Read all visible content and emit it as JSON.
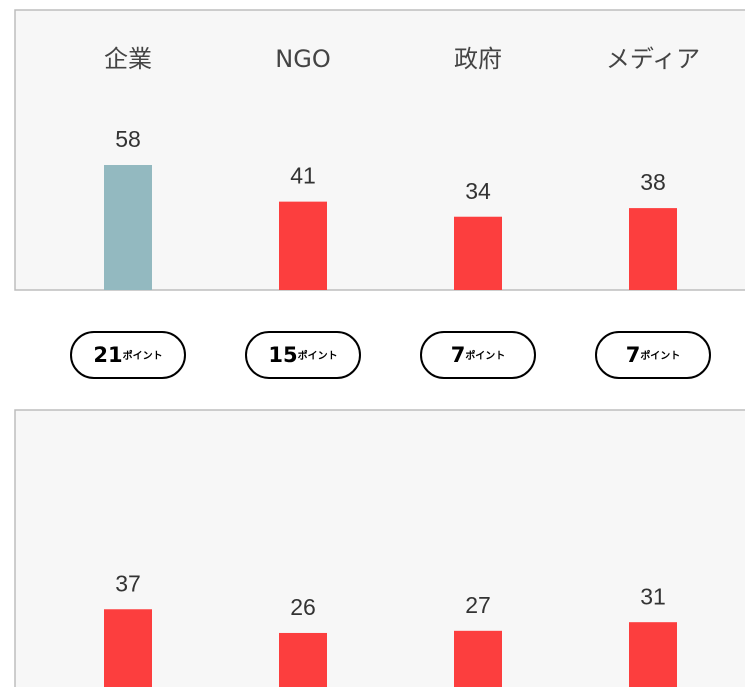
{
  "chart_data": [
    {
      "type": "bar",
      "categories": [
        "企業",
        "NGO",
        "政府",
        "メディア"
      ],
      "values": [
        58,
        41,
        34,
        38
      ],
      "colors": [
        "#93b9c0",
        "#fc3e3e",
        "#fc3e3e",
        "#fc3e3e"
      ]
    },
    {
      "type": "bar",
      "values": [
        37,
        26,
        27,
        31
      ],
      "colors": [
        "#fc3e3e",
        "#fc3e3e",
        "#fc3e3e",
        "#fc3e3e"
      ]
    }
  ],
  "differences": {
    "values": [
      21,
      15,
      7,
      7
    ],
    "unit": "ポイント"
  }
}
